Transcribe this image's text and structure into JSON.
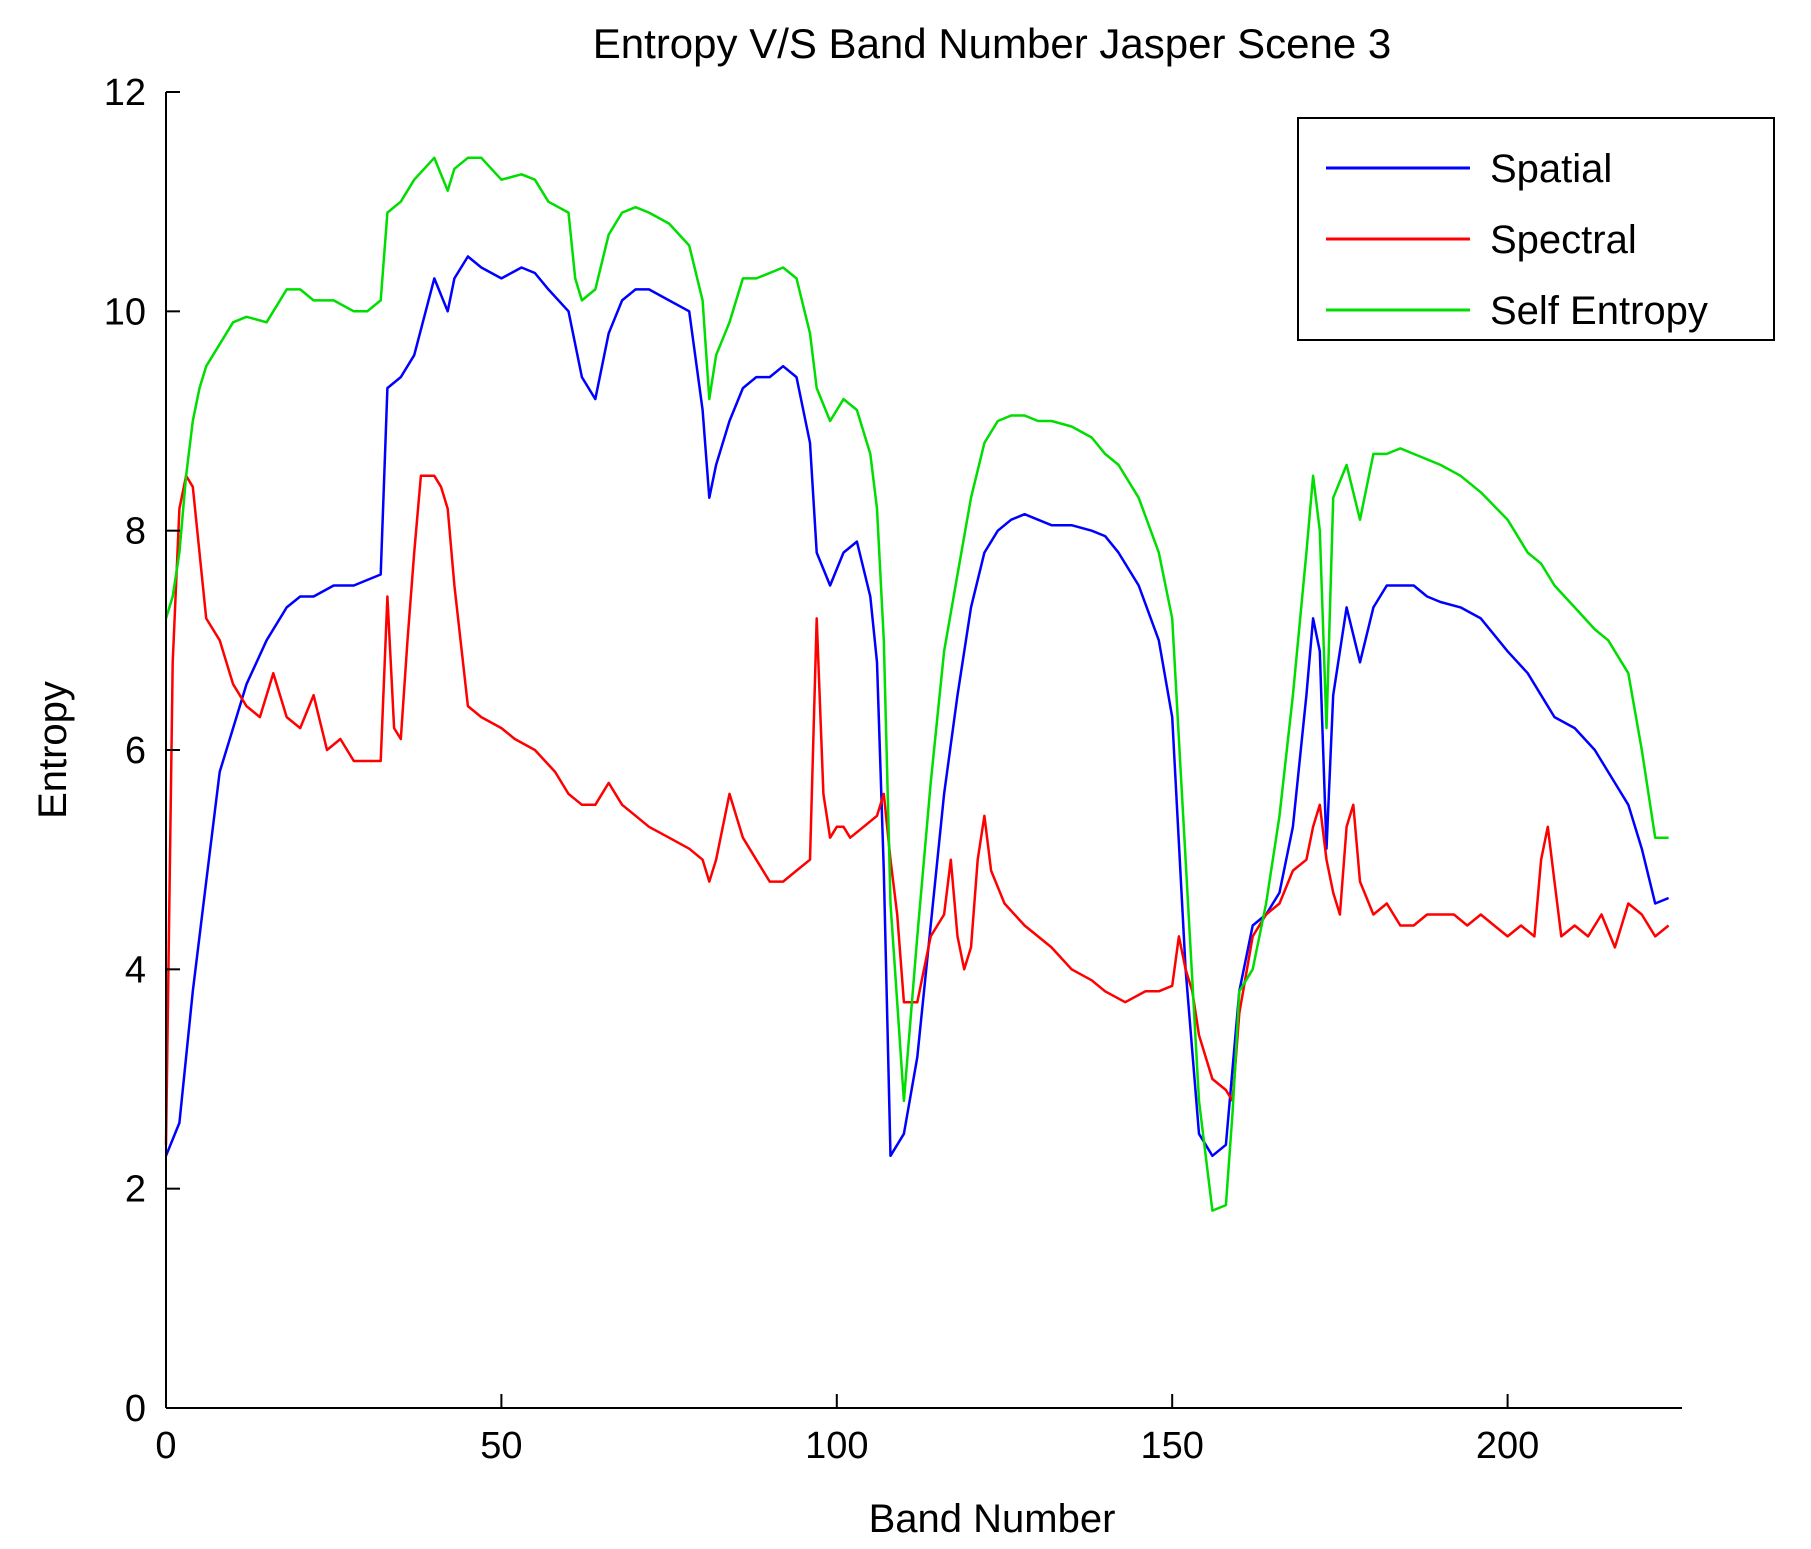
{
  "chart_data": {
    "type": "line",
    "title": "Entropy V/S Band Number Jasper Scene 3",
    "xlabel": "Band Number",
    "ylabel": "Entropy",
    "xlim": [
      0,
      226
    ],
    "ylim": [
      0,
      12
    ],
    "xticks": [
      0,
      50,
      100,
      150,
      200
    ],
    "yticks": [
      0,
      2,
      4,
      6,
      8,
      10,
      12
    ],
    "grid": false,
    "legend_position": "top-right",
    "series": [
      {
        "name": "Spatial",
        "color": "#0000ff",
        "x": [
          0,
          2,
          4,
          6,
          8,
          10,
          12,
          15,
          18,
          20,
          22,
          25,
          28,
          30,
          32,
          33,
          35,
          37,
          40,
          42,
          43,
          45,
          47,
          50,
          53,
          55,
          57,
          60,
          62,
          64,
          66,
          68,
          70,
          72,
          75,
          78,
          80,
          81,
          82,
          84,
          86,
          88,
          90,
          92,
          94,
          96,
          97,
          99,
          101,
          103,
          105,
          106,
          107,
          108,
          110,
          112,
          114,
          116,
          118,
          120,
          122,
          124,
          126,
          128,
          130,
          132,
          135,
          138,
          140,
          142,
          145,
          148,
          150,
          152,
          154,
          156,
          158,
          160,
          162,
          164,
          166,
          168,
          170,
          171,
          172,
          173,
          174,
          176,
          178,
          180,
          182,
          184,
          186,
          188,
          190,
          193,
          196,
          200,
          203,
          205,
          207,
          210,
          213,
          216,
          218,
          220,
          222,
          224
        ],
        "y": [
          2.3,
          2.6,
          3.8,
          4.8,
          5.8,
          6.2,
          6.6,
          7.0,
          7.3,
          7.4,
          7.4,
          7.5,
          7.5,
          7.55,
          7.6,
          9.3,
          9.4,
          9.6,
          10.3,
          10.0,
          10.3,
          10.5,
          10.4,
          10.3,
          10.4,
          10.35,
          10.2,
          10.0,
          9.4,
          9.2,
          9.8,
          10.1,
          10.2,
          10.2,
          10.1,
          10.0,
          9.1,
          8.3,
          8.6,
          9.0,
          9.3,
          9.4,
          9.4,
          9.5,
          9.4,
          8.8,
          7.8,
          7.5,
          7.8,
          7.9,
          7.4,
          6.8,
          4.9,
          2.3,
          2.5,
          3.2,
          4.4,
          5.6,
          6.5,
          7.3,
          7.8,
          8.0,
          8.1,
          8.15,
          8.1,
          8.05,
          8.05,
          8.0,
          7.95,
          7.8,
          7.5,
          7.0,
          6.3,
          4.0,
          2.5,
          2.3,
          2.4,
          3.8,
          4.4,
          4.5,
          4.7,
          5.3,
          6.5,
          7.2,
          6.9,
          5.1,
          6.5,
          7.3,
          6.8,
          7.3,
          7.5,
          7.5,
          7.5,
          7.4,
          7.35,
          7.3,
          7.2,
          6.9,
          6.7,
          6.5,
          6.3,
          6.2,
          6.0,
          5.7,
          5.5,
          5.1,
          4.6,
          4.65
        ]
      },
      {
        "name": "Spectral",
        "color": "#ff0000",
        "x": [
          0,
          1,
          2,
          3,
          4,
          5,
          6,
          7,
          8,
          10,
          12,
          14,
          16,
          18,
          20,
          22,
          24,
          26,
          28,
          30,
          32,
          33,
          34,
          35,
          36,
          37,
          38,
          39,
          40,
          41,
          42,
          43,
          45,
          47,
          50,
          52,
          55,
          58,
          60,
          62,
          64,
          66,
          68,
          70,
          72,
          75,
          78,
          80,
          81,
          82,
          84,
          86,
          88,
          90,
          92,
          94,
          96,
          97,
          98,
          99,
          100,
          101,
          102,
          104,
          106,
          107,
          108,
          109,
          110,
          112,
          114,
          116,
          117,
          118,
          119,
          120,
          121,
          122,
          123,
          125,
          128,
          130,
          132,
          135,
          138,
          140,
          143,
          146,
          148,
          150,
          151,
          152,
          153,
          154,
          155,
          156,
          158,
          159,
          160,
          162,
          164,
          166,
          168,
          170,
          171,
          172,
          173,
          174,
          175,
          176,
          177,
          178,
          180,
          182,
          184,
          186,
          188,
          190,
          192,
          194,
          196,
          198,
          200,
          202,
          204,
          205,
          206,
          207,
          208,
          210,
          212,
          214,
          216,
          218,
          220,
          222,
          224
        ],
        "y": [
          2.4,
          6.8,
          8.2,
          8.5,
          8.4,
          7.8,
          7.2,
          7.1,
          7.0,
          6.6,
          6.4,
          6.3,
          6.7,
          6.3,
          6.2,
          6.5,
          6.0,
          6.1,
          5.9,
          5.9,
          5.9,
          7.4,
          6.2,
          6.1,
          7.0,
          7.8,
          8.5,
          8.5,
          8.5,
          8.4,
          8.2,
          7.5,
          6.4,
          6.3,
          6.2,
          6.1,
          6.0,
          5.8,
          5.6,
          5.5,
          5.5,
          5.7,
          5.5,
          5.4,
          5.3,
          5.2,
          5.1,
          5.0,
          4.8,
          5.0,
          5.6,
          5.2,
          5.0,
          4.8,
          4.8,
          4.9,
          5.0,
          7.2,
          5.6,
          5.2,
          5.3,
          5.3,
          5.2,
          5.3,
          5.4,
          5.6,
          5.0,
          4.5,
          3.7,
          3.7,
          4.3,
          4.5,
          5.0,
          4.3,
          4.0,
          4.2,
          5.0,
          5.4,
          4.9,
          4.6,
          4.4,
          4.3,
          4.2,
          4.0,
          3.9,
          3.8,
          3.7,
          3.8,
          3.8,
          3.85,
          4.3,
          4.0,
          3.8,
          3.4,
          3.2,
          3.0,
          2.9,
          2.8,
          3.6,
          4.3,
          4.5,
          4.6,
          4.9,
          5.0,
          5.3,
          5.5,
          5.0,
          4.7,
          4.5,
          5.3,
          5.5,
          4.8,
          4.5,
          4.6,
          4.4,
          4.4,
          4.5,
          4.5,
          4.5,
          4.4,
          4.5,
          4.4,
          4.3,
          4.4,
          4.3,
          5.0,
          5.3,
          4.8,
          4.3,
          4.4,
          4.3,
          4.5,
          4.2,
          4.6,
          4.5,
          4.3,
          4.4
        ]
      },
      {
        "name": "Self Entropy",
        "color": "#00dd00",
        "x": [
          0,
          1,
          2,
          3,
          4,
          5,
          6,
          8,
          10,
          12,
          15,
          18,
          20,
          22,
          25,
          28,
          30,
          32,
          33,
          35,
          37,
          40,
          42,
          43,
          45,
          47,
          50,
          53,
          55,
          57,
          60,
          61,
          62,
          64,
          66,
          68,
          70,
          72,
          75,
          78,
          80,
          81,
          82,
          84,
          86,
          88,
          90,
          92,
          94,
          96,
          97,
          99,
          101,
          103,
          105,
          106,
          107,
          108,
          110,
          112,
          114,
          116,
          118,
          120,
          122,
          124,
          126,
          128,
          130,
          132,
          135,
          138,
          140,
          142,
          145,
          148,
          150,
          152,
          154,
          156,
          158,
          159,
          160,
          162,
          164,
          166,
          168,
          170,
          171,
          172,
          173,
          174,
          176,
          178,
          180,
          182,
          184,
          186,
          188,
          190,
          193,
          196,
          200,
          203,
          205,
          207,
          210,
          213,
          215,
          216,
          218,
          220,
          222,
          224
        ],
        "y": [
          7.2,
          7.4,
          7.8,
          8.5,
          9.0,
          9.3,
          9.5,
          9.7,
          9.9,
          9.95,
          9.9,
          10.2,
          10.2,
          10.1,
          10.1,
          10.0,
          10.0,
          10.1,
          10.9,
          11.0,
          11.2,
          11.4,
          11.1,
          11.3,
          11.4,
          11.4,
          11.2,
          11.25,
          11.2,
          11.0,
          10.9,
          10.3,
          10.1,
          10.2,
          10.7,
          10.9,
          10.95,
          10.9,
          10.8,
          10.6,
          10.1,
          9.2,
          9.6,
          9.9,
          10.3,
          10.3,
          10.35,
          10.4,
          10.3,
          9.8,
          9.3,
          9.0,
          9.2,
          9.1,
          8.7,
          8.2,
          7.0,
          4.6,
          2.8,
          4.3,
          5.7,
          6.9,
          7.6,
          8.3,
          8.8,
          9.0,
          9.05,
          9.05,
          9.0,
          9.0,
          8.95,
          8.85,
          8.7,
          8.6,
          8.3,
          7.8,
          7.2,
          5.0,
          2.8,
          1.8,
          1.85,
          2.7,
          3.8,
          4.0,
          4.6,
          5.4,
          6.5,
          7.8,
          8.5,
          8.0,
          6.2,
          8.3,
          8.6,
          8.1,
          8.7,
          8.7,
          8.75,
          8.7,
          8.65,
          8.6,
          8.5,
          8.35,
          8.1,
          7.8,
          7.7,
          7.5,
          7.3,
          7.1,
          7.0,
          6.9,
          6.7,
          6.0,
          5.2,
          5.2
        ]
      }
    ]
  }
}
